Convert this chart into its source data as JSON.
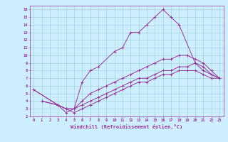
{
  "xlabel": "Windchill (Refroidissement éolien,°C)",
  "xlim": [
    -0.5,
    23.5
  ],
  "ylim": [
    2,
    16.5
  ],
  "xticks": [
    0,
    1,
    2,
    3,
    4,
    5,
    6,
    7,
    8,
    9,
    10,
    11,
    12,
    13,
    14,
    15,
    16,
    17,
    18,
    19,
    20,
    21,
    22,
    23
  ],
  "yticks": [
    2,
    3,
    4,
    5,
    6,
    7,
    8,
    9,
    10,
    11,
    12,
    13,
    14,
    15,
    16
  ],
  "bg_color": "#cceeff",
  "line_color": "#993399",
  "grid_color": "#99cccc",
  "curves": [
    {
      "x": [
        1,
        3,
        4,
        5,
        6,
        7,
        8,
        10,
        11,
        12,
        13,
        14,
        15,
        16,
        17,
        18,
        20,
        21,
        22,
        23
      ],
      "y": [
        4,
        3.5,
        3,
        3,
        6.5,
        8,
        8.5,
        10.5,
        11,
        13,
        13,
        14,
        15,
        16,
        15,
        14,
        9,
        8.5,
        7.5,
        7
      ]
    },
    {
      "x": [
        1,
        3,
        4,
        5,
        6,
        7,
        8,
        9,
        10,
        11,
        12,
        13,
        14,
        15,
        16,
        17,
        18,
        19,
        20,
        21,
        22,
        23
      ],
      "y": [
        4,
        3.5,
        2.5,
        3,
        4,
        5,
        5.5,
        6,
        6.5,
        7,
        7.5,
        8,
        8.5,
        9,
        9.5,
        9.5,
        10,
        10,
        9.5,
        9,
        8,
        7
      ]
    },
    {
      "x": [
        0,
        3,
        4,
        5,
        6,
        7,
        8,
        9,
        10,
        11,
        12,
        13,
        14,
        15,
        16,
        17,
        18,
        19,
        20,
        21,
        22,
        23
      ],
      "y": [
        5.5,
        3.5,
        3,
        3,
        3.5,
        4,
        4.5,
        5,
        5.5,
        6,
        6.5,
        7,
        7,
        7.5,
        8,
        8,
        8.5,
        8.5,
        9,
        8,
        7.5,
        7
      ]
    },
    {
      "x": [
        0,
        3,
        4,
        5,
        6,
        7,
        8,
        9,
        10,
        11,
        12,
        13,
        14,
        15,
        16,
        17,
        18,
        19,
        20,
        21,
        22,
        23
      ],
      "y": [
        5.5,
        3.5,
        3,
        2.5,
        3,
        3.5,
        4,
        4.5,
        5,
        5.5,
        6,
        6.5,
        6.5,
        7,
        7.5,
        7.5,
        8,
        8,
        8,
        7.5,
        7,
        7
      ]
    }
  ]
}
